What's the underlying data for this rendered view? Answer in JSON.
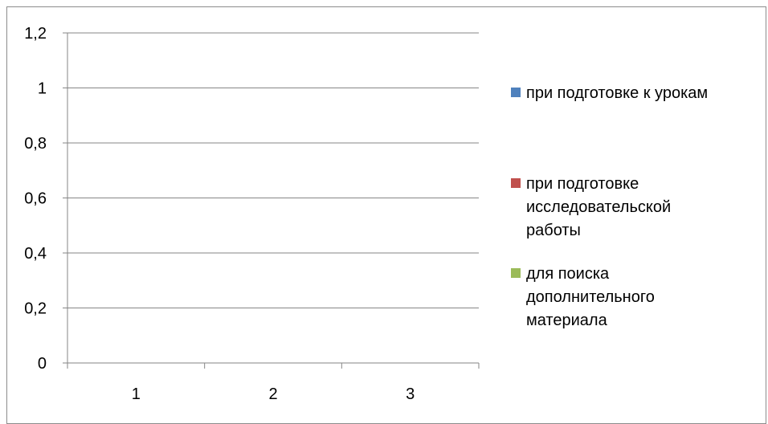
{
  "chart_data": {
    "type": "bar",
    "categories": [
      "1",
      "2",
      "3"
    ],
    "series": [
      {
        "name": "при подготовке к урокам",
        "color": "#4f81bd",
        "values": [
          0,
          0,
          0
        ]
      },
      {
        "name": "при подготовке исследовательской работы",
        "color": "#c0504d",
        "values": [
          0,
          0,
          0
        ]
      },
      {
        "name": "для поиска дополнительного материала",
        "color": "#9bbb59",
        "values": [
          0,
          0,
          0
        ]
      }
    ],
    "y_ticks": [
      "0",
      "0,2",
      "0,4",
      "0,6",
      "0,8",
      "1",
      "1,2"
    ],
    "ylim": [
      0,
      1.2
    ],
    "grid": true,
    "legend_position": "right"
  },
  "legend": {
    "items": [
      {
        "lines": [
          "при подготовке к урокам"
        ]
      },
      {
        "lines": [
          "при подготовке",
          "исследовательской",
          "работы"
        ]
      },
      {
        "lines": [
          "для поиска",
          "дополнительного",
          "материала"
        ]
      }
    ]
  }
}
